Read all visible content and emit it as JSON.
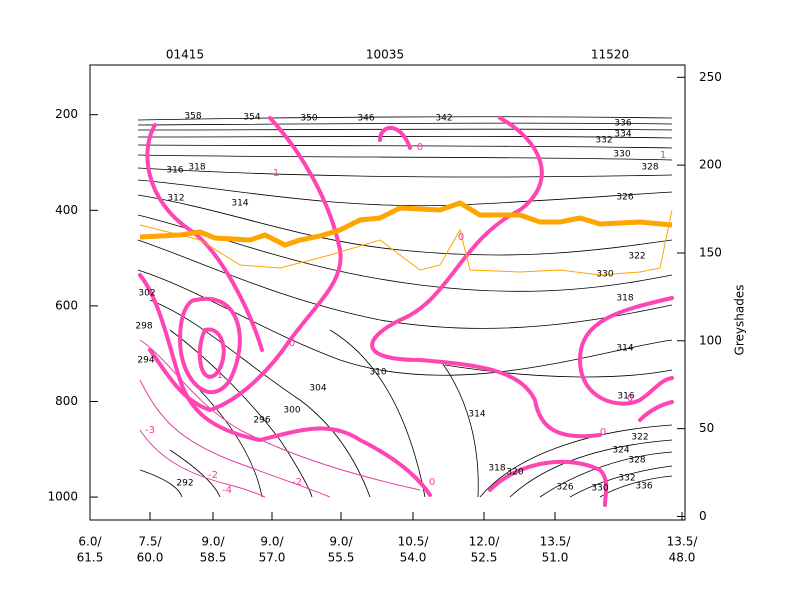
{
  "chart_data": {
    "type": "contour",
    "stations": [
      "01415",
      "10035",
      "11520"
    ],
    "categories": [
      [
        "6.0/",
        "61.5"
      ],
      [
        "7.5/",
        "60.0"
      ],
      [
        "9.0/",
        "58.5"
      ],
      [
        "9.0/",
        "57.0"
      ],
      [
        "9.0/",
        "55.5"
      ],
      [
        "10.5/",
        "54.0"
      ],
      [
        "12.0/",
        "52.5"
      ],
      [
        "13.5/",
        "51.0"
      ],
      [
        "13.5/",
        "48.0"
      ]
    ],
    "ylim": [
      96,
      1048
    ],
    "yticks": [
      200,
      400,
      600,
      800,
      1000
    ],
    "y2label": "Greyshades",
    "y2lim": [
      -2,
      257
    ],
    "y2ticks": [
      0,
      50,
      100,
      150,
      200,
      250
    ],
    "theta_labels": [
      358,
      354,
      350,
      346,
      342,
      336,
      334,
      332,
      330,
      328,
      326,
      318,
      316,
      312,
      314,
      322,
      330,
      318,
      314,
      316,
      322,
      302,
      298,
      294,
      304,
      300,
      296,
      310,
      314,
      318,
      320,
      326,
      330,
      292,
      324,
      328,
      332,
      336
    ],
    "pv_labels": [
      0,
      1,
      0,
      -1,
      -3,
      -2,
      -4,
      -2,
      0,
      0,
      0,
      1,
      0
    ],
    "grid": false
  }
}
